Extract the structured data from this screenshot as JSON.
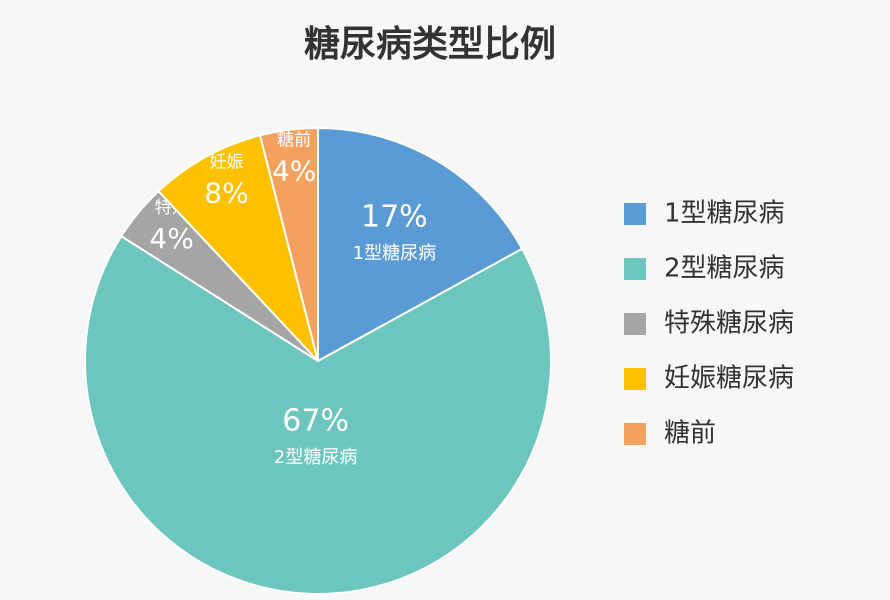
{
  "chart_data": {
    "type": "pie",
    "title": "糖尿病类型比例",
    "categories": [
      "1型糖尿病",
      "2型糖尿病",
      "特殊糖尿病",
      "妊娠糖尿病",
      "糖前"
    ],
    "values": [
      17,
      67,
      4,
      8,
      4
    ],
    "value_labels": [
      "17%",
      "67%",
      "4%",
      "8%",
      "4%"
    ],
    "slice_labels": [
      "1型糖尿病",
      "2型糖尿病",
      "特殊",
      "妊娠",
      "糖前"
    ],
    "colors": [
      "#5b9bd5",
      "#6cc6bd",
      "#a5a5a5",
      "#ffc000",
      "#f4a15d"
    ],
    "legend": "right"
  }
}
